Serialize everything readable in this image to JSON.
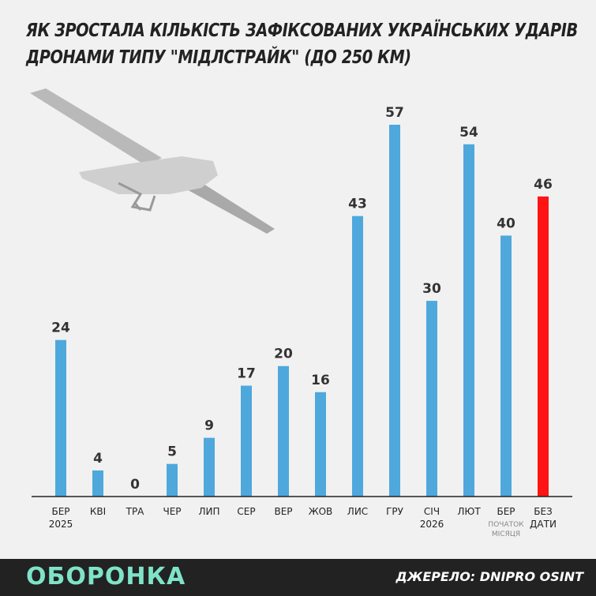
{
  "title_line1": "ЯК ЗРОСТАЛА КІЛЬКІСТЬ ЗАФІКСОВАНИХ УКРАЇНСЬКИХ УДАРІВ",
  "title_line2": "ДРОНАМИ ТИПУ \"МІДЛСТРАЙК\" (ДО 250 КМ)",
  "brand": "ОБОРОНКА",
  "source": "ДЖЕРЕЛО: DNIPRO OSINT",
  "colors": {
    "bar": "#4ea8dc",
    "highlight": "#ff1414",
    "axis": "#222222",
    "brand": "#7fe3c8"
  },
  "chart_data": {
    "type": "bar",
    "categories": [
      "БЕР",
      "КВІ",
      "ТРА",
      "ЧЕР",
      "ЛИП",
      "СЕР",
      "ВЕР",
      "ЖОВ",
      "ЛИС",
      "ГРУ",
      "СІЧ",
      "ЛЮТ",
      "БЕР",
      "БЕЗ"
    ],
    "category_second_lines": [
      "2025",
      "",
      "",
      "",
      "",
      "",
      "",
      "",
      "",
      "",
      "2026",
      "",
      "ПОЧАТОК\nМІСЯЦЯ",
      "ДАТИ"
    ],
    "values": [
      24,
      4,
      0,
      5,
      9,
      17,
      20,
      16,
      43,
      57,
      30,
      54,
      40,
      46
    ],
    "highlight_index": 13,
    "ylim": [
      0,
      57
    ],
    "grid": false,
    "legend": "none"
  }
}
